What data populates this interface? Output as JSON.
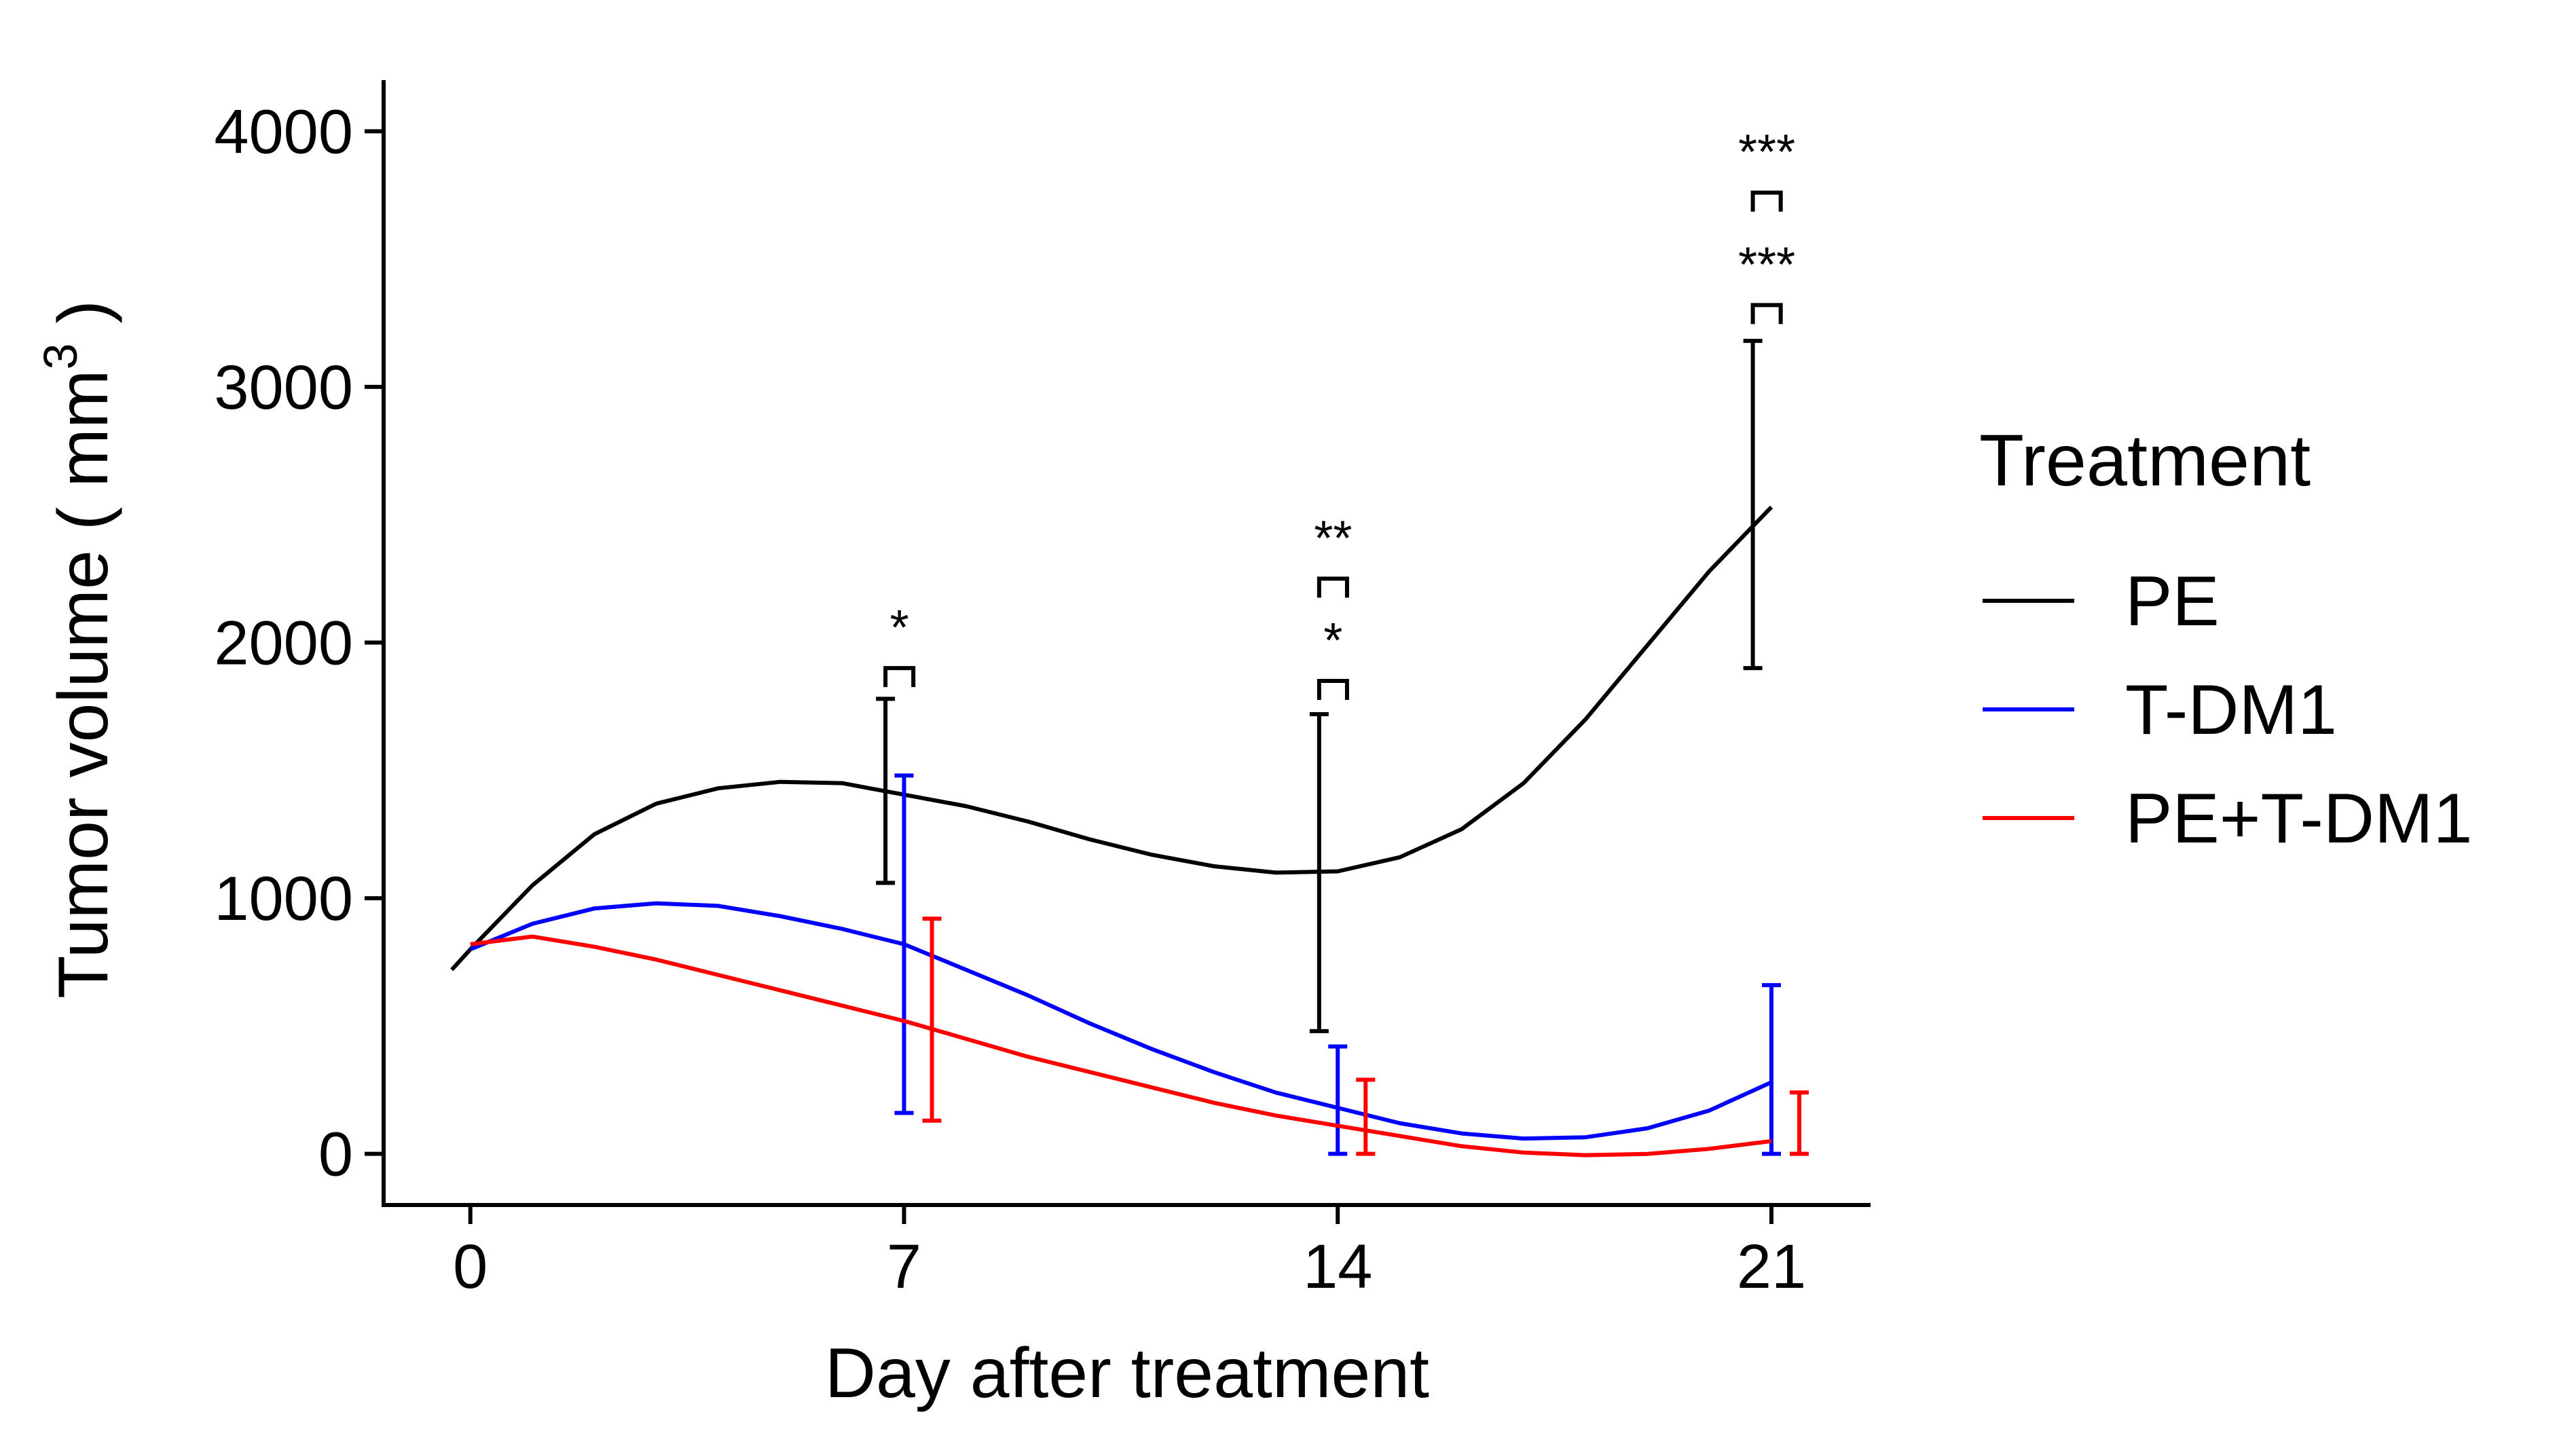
{
  "chart_data": {
    "type": "line",
    "xlabel": "Day after treatment",
    "ylabel_main": "Tumor volume ( mm",
    "ylabel_sup": "3",
    "ylabel_close": " )",
    "x_ticks": [
      0,
      7,
      14,
      21
    ],
    "x_tick_labels": [
      "0",
      "7",
      "14",
      "21"
    ],
    "y_ticks": [
      0,
      1000,
      2000,
      3000,
      4000
    ],
    "y_tick_labels": [
      "0",
      "1000",
      "2000",
      "3000",
      "4000"
    ],
    "xlim": [
      -1.4,
      22.6
    ],
    "ylim": [
      -200,
      4200
    ],
    "grid": false,
    "legend": {
      "title": "Treatment",
      "position": "right",
      "entries": [
        "PE",
        "T-DM1",
        "PE+T-DM1"
      ]
    },
    "series": [
      {
        "name": "PE",
        "color": "#000000",
        "curve": [
          [
            -0.3,
            720
          ],
          [
            0,
            800
          ],
          [
            1,
            1050
          ],
          [
            2,
            1250
          ],
          [
            3,
            1370
          ],
          [
            4,
            1430
          ],
          [
            5,
            1455
          ],
          [
            6,
            1450
          ],
          [
            7,
            1405
          ],
          [
            8,
            1360
          ],
          [
            9,
            1300
          ],
          [
            10,
            1230
          ],
          [
            11,
            1170
          ],
          [
            12,
            1125
          ],
          [
            13,
            1100
          ],
          [
            14,
            1105
          ],
          [
            15,
            1160
          ],
          [
            16,
            1270
          ],
          [
            17,
            1450
          ],
          [
            18,
            1700
          ],
          [
            19,
            1990
          ],
          [
            20,
            2280
          ],
          [
            21,
            2530
          ]
        ],
        "error_bars": [
          {
            "x": 7,
            "low": 1060,
            "high": 1780
          },
          {
            "x": 14,
            "low": 480,
            "high": 1720
          },
          {
            "x": 21,
            "low": 1900,
            "high": 3180
          }
        ]
      },
      {
        "name": "T-DM1",
        "color": "#0000ff",
        "curve": [
          [
            0,
            800
          ],
          [
            1,
            900
          ],
          [
            2,
            960
          ],
          [
            3,
            980
          ],
          [
            4,
            970
          ],
          [
            5,
            930
          ],
          [
            6,
            880
          ],
          [
            7,
            820
          ],
          [
            8,
            720
          ],
          [
            9,
            620
          ],
          [
            10,
            510
          ],
          [
            11,
            410
          ],
          [
            12,
            320
          ],
          [
            13,
            240
          ],
          [
            14,
            180
          ],
          [
            15,
            120
          ],
          [
            16,
            80
          ],
          [
            17,
            60
          ],
          [
            18,
            65
          ],
          [
            19,
            100
          ],
          [
            20,
            170
          ],
          [
            21,
            280
          ]
        ],
        "error_bars": [
          {
            "x": 7,
            "low": 160,
            "high": 1480
          },
          {
            "x": 14,
            "low": 0,
            "high": 420
          },
          {
            "x": 21,
            "low": 0,
            "high": 660
          }
        ]
      },
      {
        "name": "PE+T-DM1",
        "color": "#ff0000",
        "curve": [
          [
            0,
            820
          ],
          [
            1,
            850
          ],
          [
            2,
            810
          ],
          [
            3,
            760
          ],
          [
            4,
            700
          ],
          [
            5,
            640
          ],
          [
            6,
            580
          ],
          [
            7,
            520
          ],
          [
            8,
            450
          ],
          [
            9,
            380
          ],
          [
            10,
            320
          ],
          [
            11,
            260
          ],
          [
            12,
            200
          ],
          [
            13,
            150
          ],
          [
            14,
            110
          ],
          [
            15,
            70
          ],
          [
            16,
            30
          ],
          [
            17,
            5
          ],
          [
            18,
            -5
          ],
          [
            19,
            0
          ],
          [
            20,
            20
          ],
          [
            21,
            50
          ]
        ],
        "error_bars": [
          {
            "x": 7,
            "low": 130,
            "high": 920
          },
          {
            "x": 14,
            "low": 0,
            "high": 290
          },
          {
            "x": 21,
            "low": 0,
            "high": 240
          }
        ]
      }
    ],
    "annotations": [
      {
        "x": 7,
        "text": "*",
        "bracket_y": 1900
      },
      {
        "x": 14,
        "text": "*",
        "bracket_y": 1850
      },
      {
        "x": 14,
        "text": "**",
        "bracket_y": 2250
      },
      {
        "x": 21,
        "text": "***",
        "bracket_y": 3320
      },
      {
        "x": 21,
        "text": "***",
        "bracket_y": 3760
      }
    ]
  }
}
